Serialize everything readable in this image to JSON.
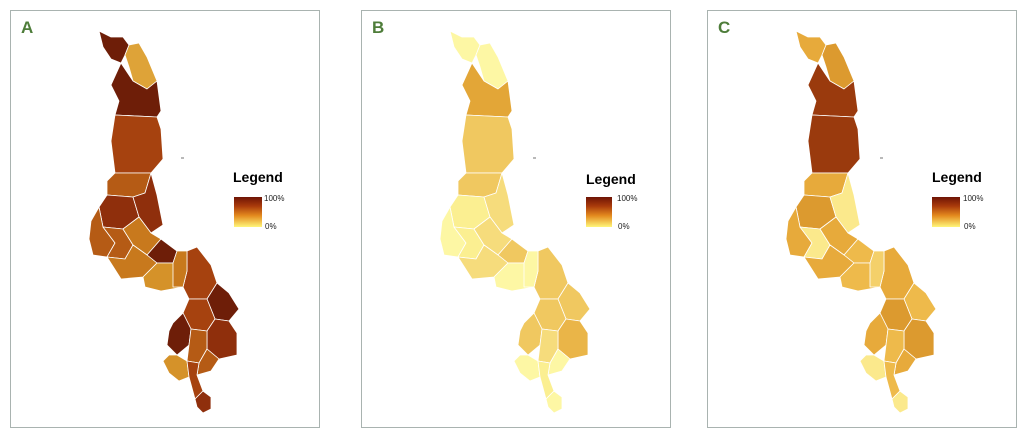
{
  "panels": [
    {
      "letter": "A",
      "legend_title": "Legend",
      "tick_high": "100%",
      "tick_low": "0%",
      "palette": [
        "#6e1e08",
        "#8f2f0c",
        "#a6420f",
        "#b55b15",
        "#c8791d",
        "#d59229",
        "#dea338"
      ]
    },
    {
      "letter": "B",
      "legend_title": "Legend",
      "tick_high": "100%",
      "tick_low": "0%",
      "palette": [
        "#9a3f10",
        "#e3a637",
        "#eab548",
        "#f0c860",
        "#f6dc7c",
        "#fbef91",
        "#fdf7a4"
      ]
    },
    {
      "letter": "C",
      "legend_title": "Legend",
      "tick_high": "100%",
      "tick_low": "0%",
      "palette": [
        "#9a3a0d",
        "#c1701b",
        "#dc9a2f",
        "#e7aa3b",
        "#eeba4b",
        "#f4d06a",
        "#fbe98c"
      ]
    }
  ],
  "colors": {
    "frame": "#a9b3b0",
    "panel_letter": "#4e7d3a",
    "district_border": "#ffffff"
  }
}
